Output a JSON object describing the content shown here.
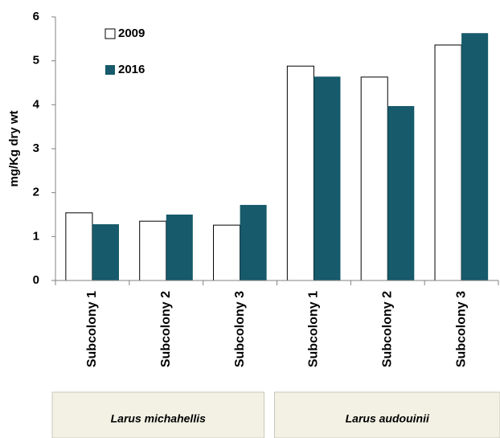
{
  "chart_data": {
    "type": "bar",
    "ylabel": "mg/Kg dry wt",
    "categories": [
      "Subcolony 1",
      "Subcolony 2",
      "Subcolony 3",
      "Subcolony 1",
      "Subcolony 2",
      "Subcolony 3"
    ],
    "groups": [
      "Larus michahellis",
      "Larus audouinii"
    ],
    "series": [
      {
        "name": "2009",
        "color": "#ffffff",
        "values": [
          1.54,
          1.35,
          1.26,
          4.88,
          4.63,
          5.36
        ]
      },
      {
        "name": "2016",
        "color": "#165a6b",
        "values": [
          1.28,
          1.5,
          1.72,
          4.64,
          3.97,
          5.63
        ]
      }
    ],
    "ylim": [
      0,
      6
    ],
    "yticks": [
      0,
      1,
      2,
      3,
      4,
      5,
      6
    ]
  }
}
